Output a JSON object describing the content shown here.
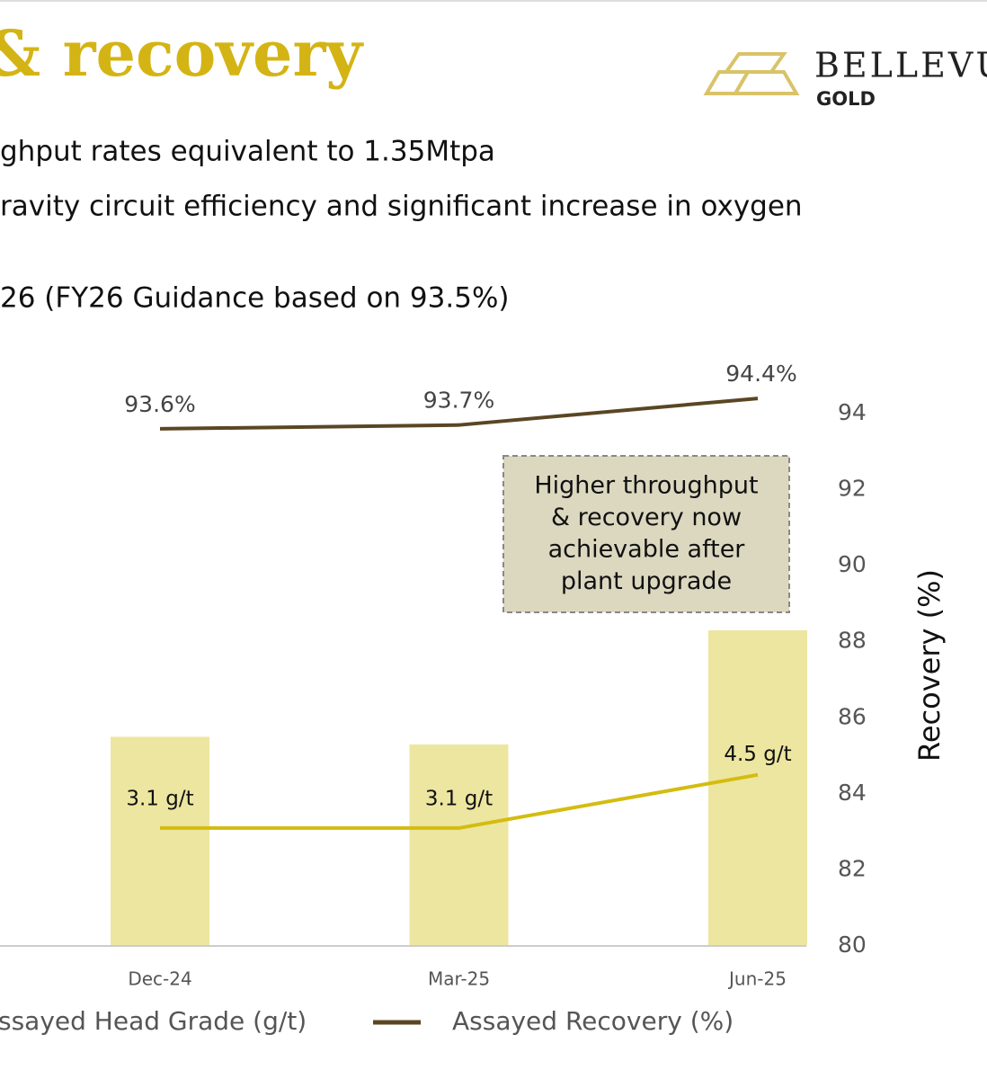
{
  "header": {
    "title": "& recovery",
    "logo_name": "BELLEVU",
    "logo_sub": "GOLD"
  },
  "bullets": [
    "ghput rates equivalent to 1.35Mtpa",
    "ravity circuit efficiency and significant increase in oxygen",
    "26 (FY26 Guidance based on 93.5%)"
  ],
  "chart_data": {
    "type": "combo",
    "categories": [
      "Dec-24",
      "Mar-25",
      "Jun-25"
    ],
    "ylim": [
      0,
      14
    ],
    "y2lim": [
      80,
      94
    ],
    "y2ticks": [
      80,
      82,
      84,
      86,
      88,
      90,
      92,
      94
    ],
    "y2label": "Recovery (%)",
    "series": [
      {
        "type": "bar",
        "color": "#ede6a0",
        "values": [
          5.5,
          5.3,
          8.3
        ]
      },
      {
        "type": "line",
        "name": "ssayed Head Grade (g/t)",
        "color": "#d4bc10",
        "values": [
          3.1,
          3.1,
          4.5
        ],
        "value_labels": [
          "3.1 g/t",
          "3.1 g/t",
          "4.5 g/t"
        ]
      },
      {
        "type": "line",
        "name": "Assayed Recovery (%)",
        "color": "#5a4623",
        "axis": "y2",
        "values": [
          93.6,
          93.7,
          94.4
        ],
        "value_labels": [
          "93.6%",
          "93.7%",
          "94.4%"
        ]
      }
    ],
    "annotation": [
      "Higher throughput",
      "& recovery now",
      "achievable after",
      "plant upgrade"
    ]
  }
}
